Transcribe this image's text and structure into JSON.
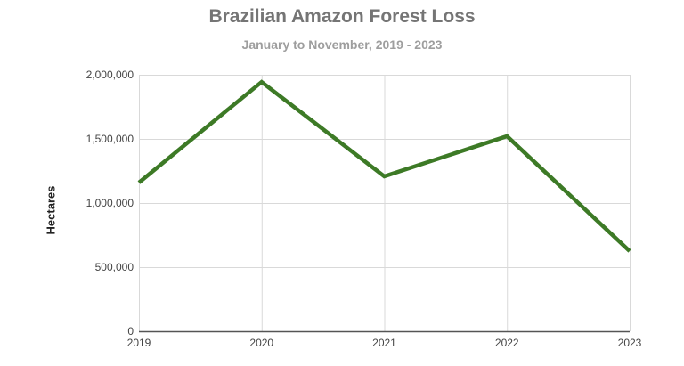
{
  "chart_data": {
    "type": "line",
    "title": "Brazilian Amazon Forest Loss",
    "subtitle": "January to November, 2019 - 2023",
    "xlabel": "",
    "ylabel": "Hectares",
    "categories": [
      "2019",
      "2020",
      "2021",
      "2022",
      "2023"
    ],
    "series": [
      {
        "name": "Hectares",
        "color": "#3d7a26",
        "values": [
          1160000,
          1944000,
          1208000,
          1521000,
          625000
        ]
      }
    ],
    "ylim": [
      0,
      2000000
    ],
    "yticks": [
      "0",
      "500,000",
      "1,000,000",
      "1,500,000",
      "2,000,000"
    ],
    "grid": true,
    "legend": "none"
  }
}
